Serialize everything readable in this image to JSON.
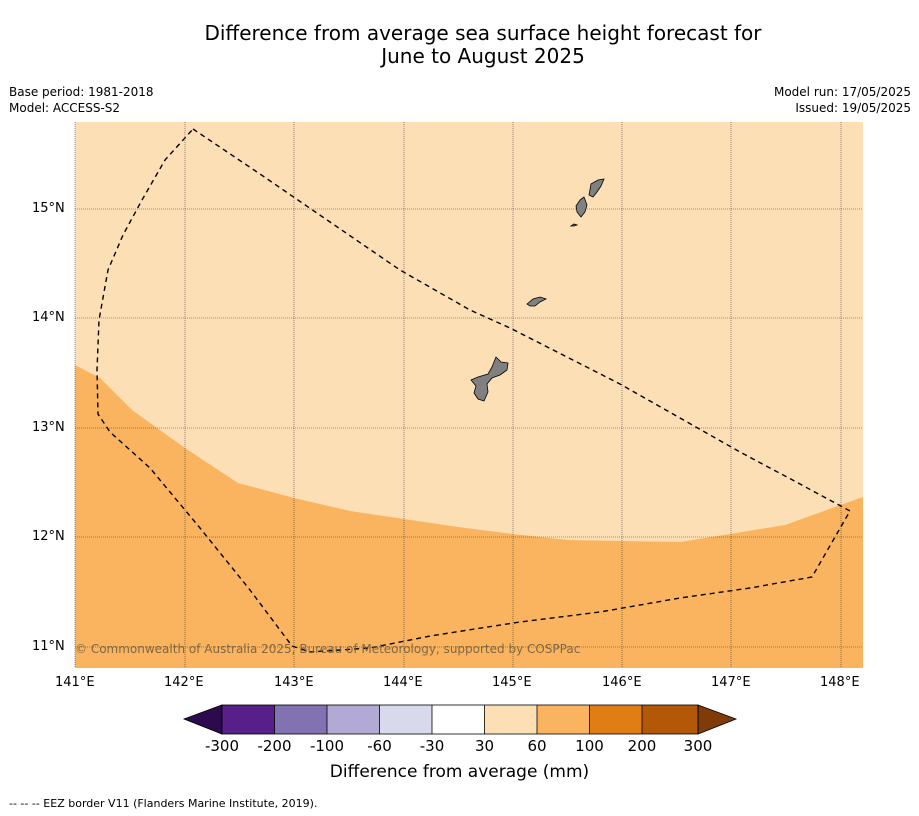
{
  "title_line1": "Difference from average sea surface height forecast for",
  "title_line2": "June to August 2025",
  "meta_left": [
    "Base period: 1981-2018",
    "Model: ACCESS-S2"
  ],
  "meta_right": [
    "Model run: 17/05/2025",
    "Issued: 19/05/2025"
  ],
  "lat_labels": [
    "15°N",
    "14°N",
    "13°N",
    "12°N",
    "11°N"
  ],
  "lon_labels": [
    "141°E",
    "142°E",
    "143°E",
    "144°E",
    "145°E",
    "146°E",
    "147°E",
    "148°E"
  ],
  "copyright": "© Commonwealth of Australia 2025, Bureau of Meteorology, supported by COSPPac",
  "colorbar": {
    "ticks": [
      "-300",
      "-200",
      "-100",
      "-60",
      "-30",
      "30",
      "60",
      "100",
      "200",
      "300"
    ],
    "colors": [
      "#2d0a4e",
      "#562088",
      "#8272b2",
      "#b2aad4",
      "#d9d9ec",
      "#ffffff",
      "#fddfb6",
      "#fab45f",
      "#e07e14",
      "#b35806",
      "#7f3b08"
    ],
    "title": "Difference from average (mm)"
  },
  "map_colors": {
    "sea_low": "#fddfb6",
    "sea_high": "#fab45f",
    "land": "#808080"
  },
  "footnote": "-- -- -- EEZ border V11 (Flanders Marine Institute, 2019)."
}
